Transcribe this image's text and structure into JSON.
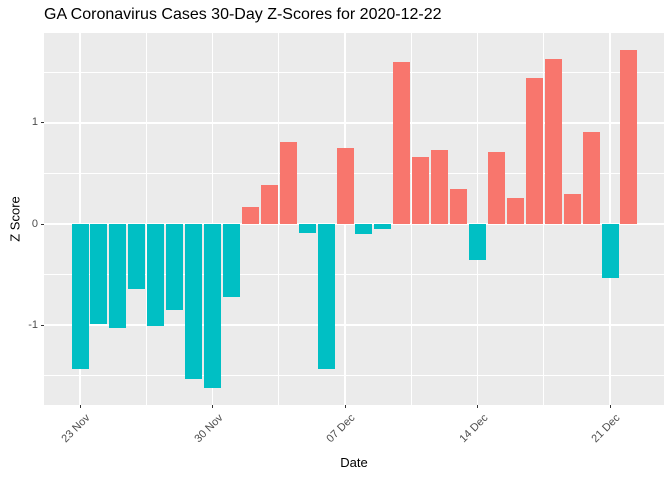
{
  "chart_data": {
    "type": "bar",
    "title": "GA Coronavirus Cases 30-Day Z-Scores for 2020-12-22",
    "xlabel": "Date",
    "ylabel": "Z Score",
    "dates": [
      "2020-11-23",
      "2020-11-24",
      "2020-11-25",
      "2020-11-26",
      "2020-11-27",
      "2020-11-28",
      "2020-11-29",
      "2020-11-30",
      "2020-12-01",
      "2020-12-02",
      "2020-12-03",
      "2020-12-04",
      "2020-12-05",
      "2020-12-06",
      "2020-12-07",
      "2020-12-08",
      "2020-12-09",
      "2020-12-10",
      "2020-12-11",
      "2020-12-12",
      "2020-12-13",
      "2020-12-14",
      "2020-12-15",
      "2020-12-16",
      "2020-12-17",
      "2020-12-18",
      "2020-12-19",
      "2020-12-20",
      "2020-12-21",
      "2020-12-22"
    ],
    "values": [
      -1.43,
      -0.99,
      -1.03,
      -0.64,
      -1.01,
      -0.85,
      -1.53,
      -1.62,
      -0.72,
      0.17,
      0.39,
      0.81,
      -0.09,
      -1.43,
      0.75,
      -0.1,
      -0.05,
      1.6,
      0.66,
      0.73,
      0.35,
      -0.36,
      0.71,
      0.26,
      1.44,
      1.63,
      0.3,
      0.91,
      -0.53,
      1.72
    ],
    "ylim": [
      -1.79,
      1.89
    ],
    "y_ticks": [
      {
        "value": 1,
        "label": "1"
      },
      {
        "value": 0,
        "label": "0"
      },
      {
        "value": -1,
        "label": "-1"
      }
    ],
    "y_minor_breaks": [
      1.5,
      0.5,
      -0.5,
      -1.5
    ],
    "x_ticks": [
      {
        "day_index": 0,
        "label": "23 Nov"
      },
      {
        "day_index": 7,
        "label": "30 Nov"
      },
      {
        "day_index": 14,
        "label": "07 Dec"
      },
      {
        "day_index": 21,
        "label": "14 Dec"
      },
      {
        "day_index": 28,
        "label": "21 Dec"
      }
    ],
    "x_minor_day_index": [
      3.5,
      10.5,
      17.5,
      24.5
    ],
    "legend": false,
    "grid": true,
    "colors": {
      "positive": "#F8766D",
      "negative": "#00BFC4",
      "panel_bg": "#EBEBEB",
      "grid": "#FFFFFF",
      "tick_text": "#4D4D4D",
      "tick_mark": "#333333",
      "title_text": "#000000"
    }
  }
}
